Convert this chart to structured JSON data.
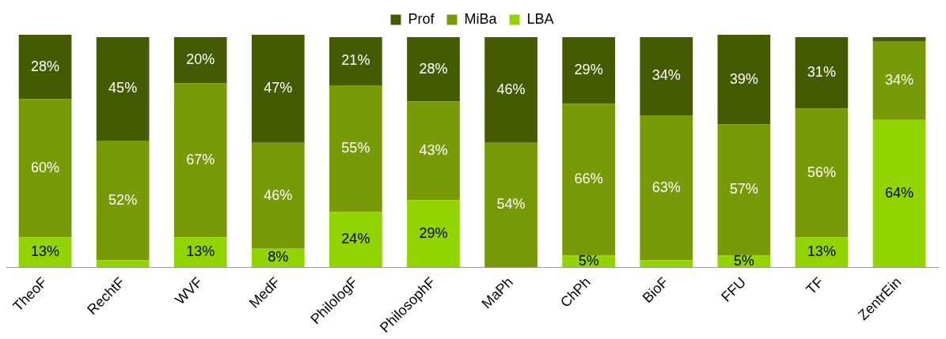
{
  "chart_data": {
    "type": "bar",
    "stacked": true,
    "categories": [
      "TheoF",
      "RechtF",
      "WVF",
      "MedF",
      "PhilologF",
      "PhilosophF",
      "MaPh",
      "ChPh",
      "BioF",
      "FFU",
      "TF",
      "ZentrEin"
    ],
    "series": [
      {
        "name": "LBA",
        "color": "#92d400",
        "values": [
          13,
          3,
          13,
          8,
          24,
          29,
          0,
          5,
          3,
          5,
          13,
          64
        ],
        "value_labels": [
          "13%",
          null,
          "13%",
          "8%",
          "24%",
          "29%",
          null,
          "5%",
          null,
          "5%",
          "13%",
          "64%"
        ]
      },
      {
        "name": "MiBa",
        "color": "#779a06",
        "values": [
          60,
          52,
          67,
          46,
          55,
          43,
          54,
          66,
          63,
          57,
          56,
          34
        ],
        "value_labels": [
          "60%",
          "52%",
          "67%",
          "46%",
          "55%",
          "43%",
          "54%",
          "66%",
          "63%",
          "57%",
          "56%",
          "34%"
        ]
      },
      {
        "name": "Prof",
        "color": "#455b02",
        "values": [
          28,
          45,
          20,
          47,
          21,
          28,
          46,
          29,
          34,
          39,
          31,
          2
        ],
        "value_labels": [
          "28%",
          "45%",
          "20%",
          "47%",
          "21%",
          "28%",
          "46%",
          "29%",
          "34%",
          "39%",
          "31%",
          null
        ]
      }
    ],
    "ylim": [
      0,
      101
    ],
    "tick_labels": "x",
    "grid": false,
    "legend": "top"
  }
}
